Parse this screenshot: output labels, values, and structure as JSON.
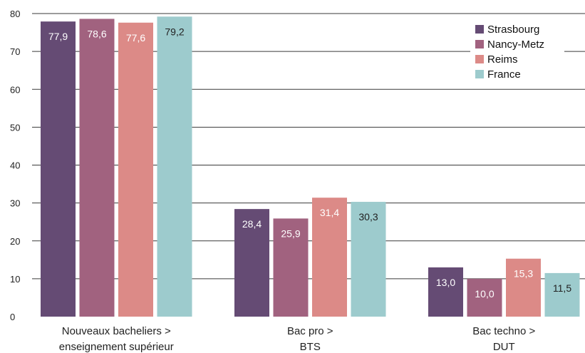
{
  "chart_data": {
    "type": "bar",
    "categories": [
      [
        "Nouveaux bacheliers >",
        "enseignement supérieur"
      ],
      [
        "Bac pro >",
        "BTS"
      ],
      [
        "Bac techno >",
        "DUT"
      ]
    ],
    "series": [
      {
        "name": "Strasbourg",
        "color": "#654b74",
        "values": [
          77.9,
          28.4,
          13.0
        ],
        "labels": [
          "77,9",
          "28,4",
          "13,0"
        ]
      },
      {
        "name": "Nancy-Metz",
        "color": "#a1627f",
        "values": [
          78.6,
          25.9,
          10.0
        ],
        "labels": [
          "78,6",
          "25,9",
          "10,0"
        ]
      },
      {
        "name": "Reims",
        "color": "#dc8a87",
        "values": [
          77.6,
          31.4,
          15.3
        ],
        "labels": [
          "77,6",
          "31,4",
          "15,3"
        ]
      },
      {
        "name": "France",
        "color": "#9dcbcd",
        "values": [
          79.2,
          30.3,
          11.5
        ],
        "labels": [
          "79,2",
          "30,3",
          "11,5"
        ]
      }
    ],
    "yticks": [
      0,
      10,
      20,
      30,
      40,
      50,
      60,
      70,
      80
    ],
    "ylim": [
      0,
      80
    ],
    "grid": true,
    "legend_position": "top-right",
    "label_colors": {
      "dark": "#ffffff",
      "light": "#222222"
    }
  }
}
